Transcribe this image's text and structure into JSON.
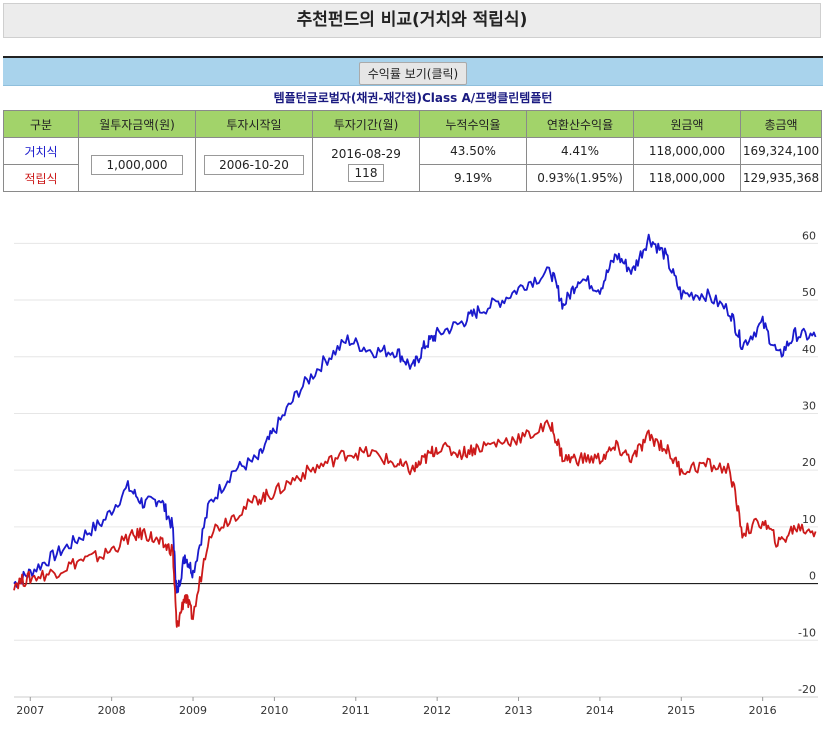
{
  "page": {
    "title": "추천펀드의 비교(거치와 적립식)",
    "button_label": "수익률 보기(클릭)",
    "fund_name": "템플턴글로벌자(채권-재간접)Class A/프랭클린템플턴"
  },
  "table": {
    "headers": [
      "구분",
      "월투자금액(원)",
      "투자시작일",
      "투자기간(월)",
      "누적수익율",
      "연환산수익율",
      "원금액",
      "총금액"
    ],
    "monthly_amount": "1,000,000",
    "start_date": "2006-10-20",
    "end_date": "2016-08-29",
    "period_months": "118",
    "rows": [
      {
        "type": "거치식",
        "cum_return": "43.50%",
        "annual_return": "4.41%",
        "principal": "118,000,000",
        "total": "169,324,100"
      },
      {
        "type": "적립식",
        "cum_return": "9.19%",
        "annual_return": "0.93%(1.95%)",
        "principal": "118,000,000",
        "total": "129,935,368"
      }
    ]
  },
  "chart_data": {
    "type": "line",
    "x": [
      2006.8,
      2007.0,
      2007.3,
      2007.6,
      2007.9,
      2008.2,
      2008.4,
      2008.6,
      2008.75,
      2008.8,
      2008.9,
      2009.0,
      2009.2,
      2009.5,
      2009.8,
      2010.0,
      2010.3,
      2010.6,
      2010.9,
      2011.2,
      2011.5,
      2011.7,
      2011.85,
      2012.0,
      2012.3,
      2012.5,
      2012.8,
      2013.1,
      2013.4,
      2013.55,
      2013.75,
      2014.0,
      2014.2,
      2014.4,
      2014.6,
      2014.8,
      2015.0,
      2015.3,
      2015.6,
      2015.75,
      2016.0,
      2016.2,
      2016.4,
      2016.65
    ],
    "series": [
      {
        "color": "#1a1acc",
        "values": [
          0,
          2,
          5,
          8,
          11,
          17,
          14,
          15,
          10,
          -2,
          5,
          2,
          14,
          20,
          22,
          27,
          34,
          39,
          43,
          41,
          41,
          38,
          42,
          44,
          46,
          48,
          50,
          53,
          55,
          49,
          54,
          52,
          58,
          55,
          61,
          58,
          51,
          51,
          48,
          42,
          46,
          40,
          44,
          43.5
        ]
      },
      {
        "color": "#cc1a1a",
        "values": [
          0,
          1,
          2,
          4,
          5,
          8,
          9,
          7,
          6,
          -8,
          -2,
          -6,
          9,
          12,
          15,
          16,
          19,
          21,
          23,
          23,
          21,
          20,
          22,
          24,
          23,
          24,
          25,
          26,
          28,
          22,
          22,
          22,
          24,
          22,
          26,
          24,
          20,
          21,
          20,
          9,
          11,
          7,
          10,
          9.19
        ]
      }
    ],
    "x_ticks": [
      "2007",
      "2008",
      "2009",
      "2010",
      "2011",
      "2012",
      "2013",
      "2014",
      "2015",
      "2016"
    ],
    "y_ticks": [
      60,
      50,
      40,
      30,
      20,
      10,
      0,
      -10,
      -20
    ],
    "xlim": [
      2006.8,
      2016.68
    ],
    "ylim": [
      -20,
      65
    ],
    "grid": true
  }
}
